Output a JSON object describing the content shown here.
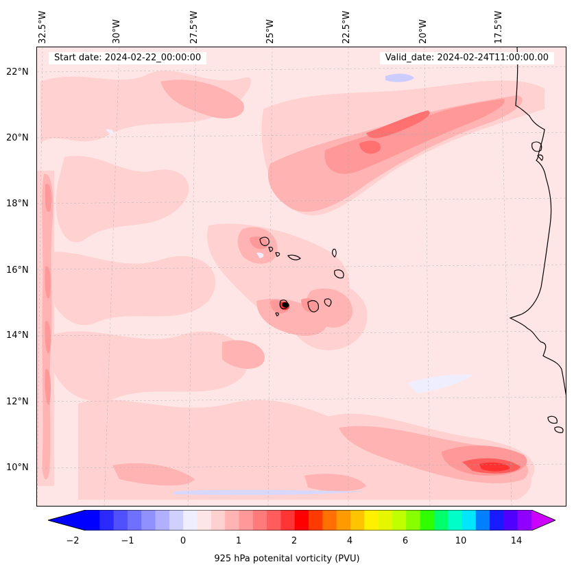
{
  "header": {
    "start_date": "Start date: 2024-02-22_00:00:00",
    "valid_date": "Valid_date: 2024-02-24T11:00:00.00"
  },
  "longitude_labels": [
    "32.5°W",
    "30°W",
    "27.5°W",
    "25°W",
    "22.5°W",
    "20°W",
    "17.5°W"
  ],
  "latitude_labels": [
    "22°N",
    "20°N",
    "18°N",
    "16°N",
    "14°N",
    "12°N",
    "10°N"
  ],
  "colorbar": {
    "title": "925 hPa potenital vorticity (PVU)",
    "tick_labels": [
      "−2",
      "−1",
      "0",
      "1",
      "2",
      "4",
      "6",
      "10",
      "14"
    ],
    "colors": [
      "#0000ff",
      "#2a2aff",
      "#5050ff",
      "#7070ff",
      "#9090ff",
      "#b0b0ff",
      "#d0d0ff",
      "#eeeeff",
      "#ffe6e6",
      "#ffd0d0",
      "#ffb3b3",
      "#ff9999",
      "#ff7a7a",
      "#ff5c5c",
      "#ff3535",
      "#ff0000",
      "#ff3a00",
      "#ff7000",
      "#ff9a00",
      "#ffc400",
      "#fff000",
      "#e6f500",
      "#c0ff00",
      "#88ff00",
      "#30ff00",
      "#00ff6a",
      "#00ffc8",
      "#00e6ff",
      "#0080ff",
      "#1a1aff",
      "#5000ff",
      "#9000ff"
    ],
    "extend_low_color": "#0000ff",
    "extend_high_color": "#cc00ff"
  },
  "map_colors": {
    "background": "#ffe6e6",
    "light": "#ffd0d0",
    "medium": "#ffb3b3",
    "strong": "#ff9999",
    "stronger": "#ff7070",
    "max": "#ff3030",
    "negative": "#ccccff",
    "coast": "#000000"
  }
}
